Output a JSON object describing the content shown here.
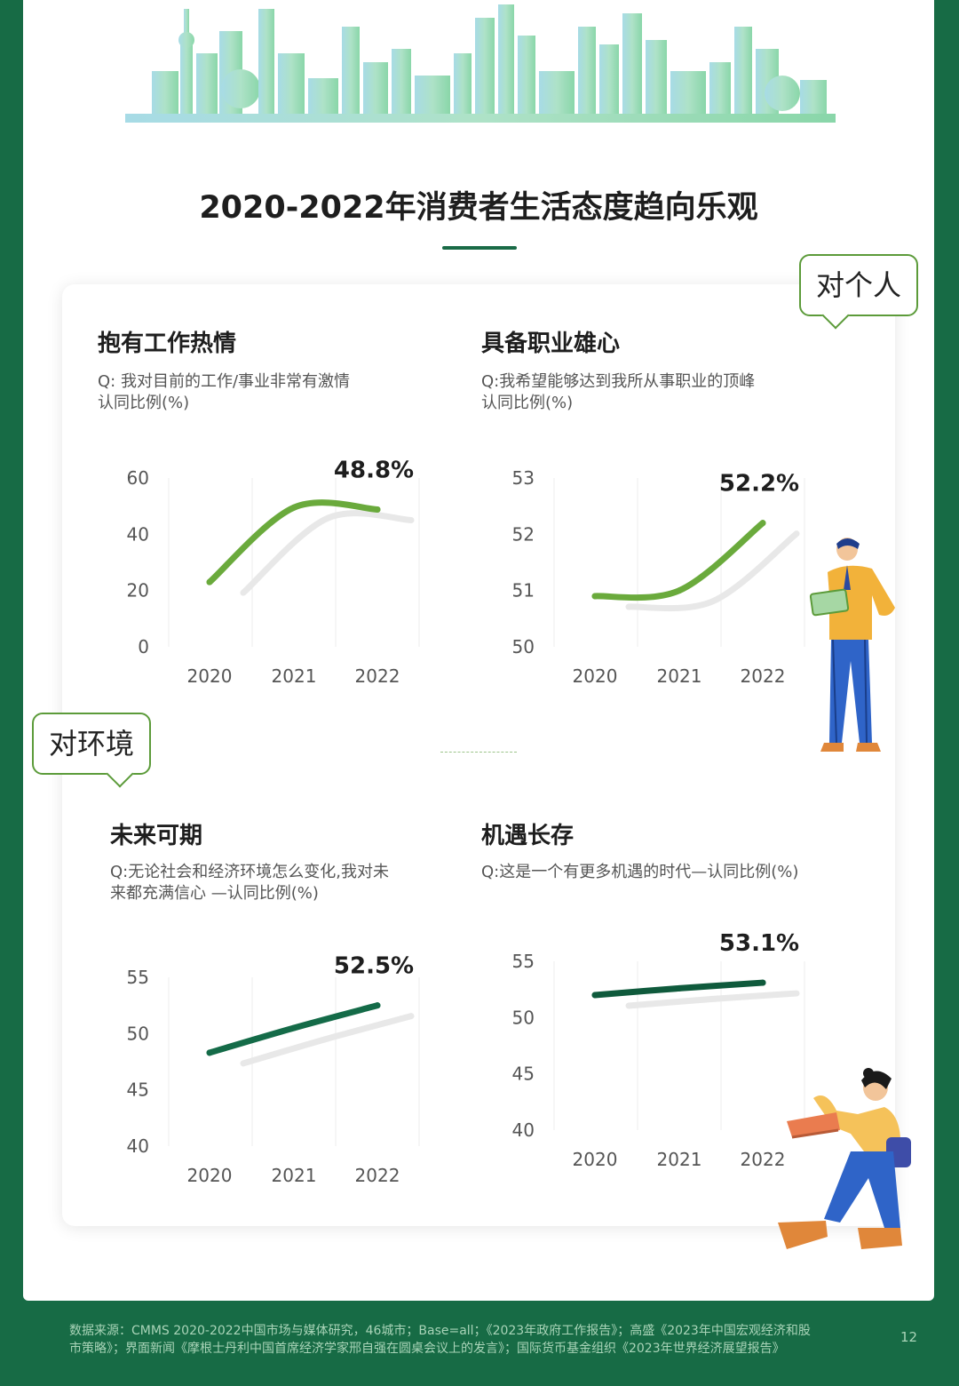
{
  "page": {
    "title": "2020-2022年消费者生活态度趋向乐观",
    "tag_personal": "对个人",
    "tag_environment": "对环境",
    "footer": [
      "数据来源：CMMS 2020-2022中国市场与媒体研究，46城市；Base=all；《2023年政府工作报告》；高盛《2023年中国宏观经济和股",
      "市策略》；界面新闻《摩根士丹利中国首席经济学家邢自强在圆桌会议上的发言》；国际货币基金组织《2023年世界经济展望报告》"
    ],
    "page_number": "12",
    "colors": {
      "brand_green": "#176b45",
      "line_light": "#6aaa3c",
      "line_dark": "#146b48"
    }
  },
  "chart_data": [
    {
      "type": "line",
      "title": "抱有工作热情",
      "question": [
        "Q: 我对目前的工作/事业非常有激情",
        "认同比例(%)"
      ],
      "x": [
        "2020",
        "2021",
        "2022"
      ],
      "values": [
        23,
        49.5,
        48.8
      ],
      "value_label": "48.8%",
      "ylim": [
        0,
        60
      ],
      "yticks": [
        "0",
        "20",
        "40",
        "60"
      ],
      "color": "#6aaa3c"
    },
    {
      "type": "line",
      "title": "具备职业雄心",
      "question": [
        "Q:我希望能够达到我所从事职业的顶峰",
        "认同比例(%)"
      ],
      "x": [
        "2020",
        "2021",
        "2022"
      ],
      "values": [
        50.9,
        51.0,
        52.2
      ],
      "value_label": "52.2%",
      "ylim": [
        50,
        53
      ],
      "yticks": [
        "50",
        "51",
        "52",
        "53"
      ],
      "color": "#6aaa3c"
    },
    {
      "type": "line",
      "title": "未来可期",
      "question": [
        "Q:无论社会和经济环境怎么变化,我对未",
        "来都充满信心 —认同比例(%)"
      ],
      "x": [
        "2020",
        "2021",
        "2022"
      ],
      "values": [
        48.3,
        50.5,
        52.5
      ],
      "value_label": "52.5%",
      "ylim": [
        40,
        55
      ],
      "yticks": [
        "40",
        "45",
        "50",
        "55"
      ],
      "color": "#146b48"
    },
    {
      "type": "line",
      "title": "机遇长存",
      "question": [
        "Q:这是一个有更多机遇的时代—认同比例(%)"
      ],
      "x": [
        "2020",
        "2021",
        "2022"
      ],
      "values": [
        52.0,
        52.6,
        53.1
      ],
      "value_label": "53.1%",
      "ylim": [
        40,
        55
      ],
      "yticks": [
        "40",
        "45",
        "50",
        "55"
      ],
      "color": "#0f5a3c"
    }
  ]
}
